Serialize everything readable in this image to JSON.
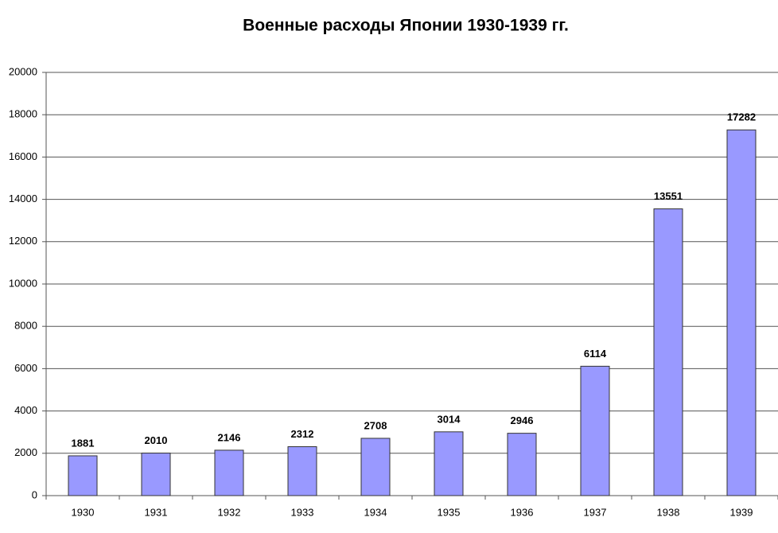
{
  "chart_data": {
    "type": "bar",
    "title": "Военные расходы Японии 1930-1939 гг.",
    "categories": [
      "1930",
      "1931",
      "1932",
      "1933",
      "1934",
      "1935",
      "1936",
      "1937",
      "1938",
      "1939"
    ],
    "values": [
      1881,
      2010,
      2146,
      2312,
      2708,
      3014,
      2946,
      6114,
      13551,
      17282
    ],
    "color": "#9999ff",
    "ylim": [
      0,
      20000
    ],
    "yticks": [
      0,
      2000,
      4000,
      6000,
      8000,
      10000,
      12000,
      14000,
      16000,
      18000,
      20000
    ],
    "grid": true
  }
}
